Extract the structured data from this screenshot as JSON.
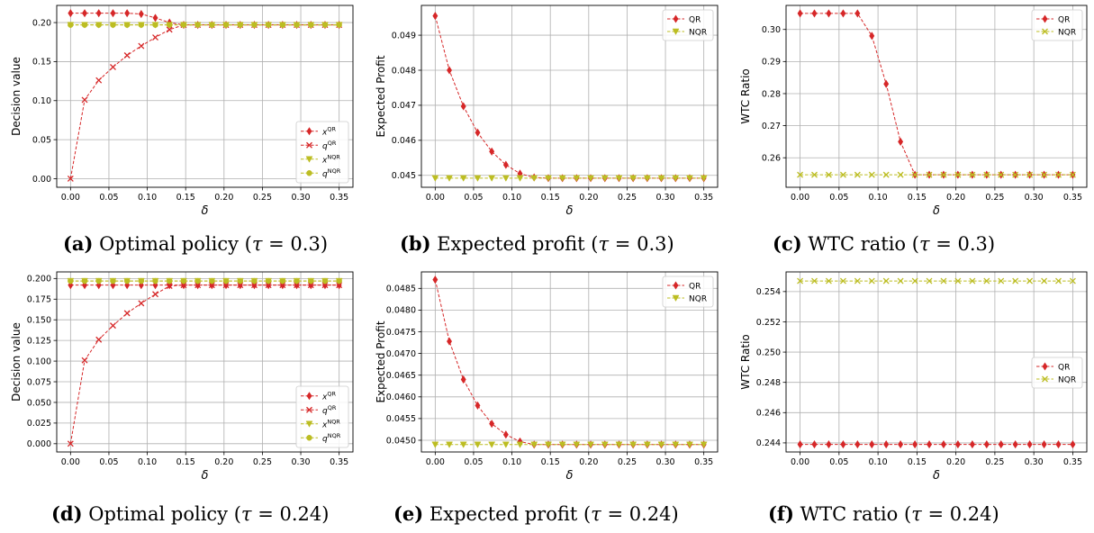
{
  "chart_data": [
    {
      "id": "a",
      "type": "line",
      "caption": {
        "label": "(a)",
        "text": "Optimal policy",
        "tau_value": "0.3"
      },
      "xlabel": "δ",
      "ylabel": "Decision value",
      "xlim": [
        -0.018,
        0.368
      ],
      "ylim": [
        -0.011,
        0.222
      ],
      "xticks": [
        "0.00",
        "0.05",
        "0.10",
        "0.15",
        "0.20",
        "0.25",
        "0.30",
        "0.35"
      ],
      "xtick_values": [
        0,
        0.05,
        0.1,
        0.15,
        0.2,
        0.25,
        0.3,
        0.35
      ],
      "yticks": [
        "0.00",
        "0.05",
        "0.10",
        "0.15",
        "0.20"
      ],
      "ytick_values": [
        0,
        0.05,
        0.1,
        0.15,
        0.2
      ],
      "grid": true,
      "legend_position": "lower-right",
      "x": [
        0,
        0.0184,
        0.0368,
        0.0553,
        0.0737,
        0.0921,
        0.1105,
        0.1289,
        0.1474,
        0.1658,
        0.1842,
        0.2026,
        0.2211,
        0.2395,
        0.2579,
        0.2763,
        0.2947,
        0.3132,
        0.3316,
        0.35
      ],
      "series": [
        {
          "name": "x",
          "sup": "QR",
          "color": "#d62728",
          "marker": "diamond",
          "values": [
            0.212,
            0.212,
            0.212,
            0.212,
            0.212,
            0.211,
            0.206,
            0.2,
            0.197,
            0.197,
            0.197,
            0.197,
            0.197,
            0.197,
            0.197,
            0.197,
            0.197,
            0.197,
            0.197,
            0.197
          ]
        },
        {
          "name": "q",
          "sup": "QR",
          "color": "#d62728",
          "marker": "x",
          "values": [
            0.0,
            0.101,
            0.126,
            0.143,
            0.158,
            0.17,
            0.181,
            0.191,
            0.197,
            0.197,
            0.197,
            0.197,
            0.197,
            0.197,
            0.197,
            0.197,
            0.197,
            0.197,
            0.197,
            0.197
          ]
        },
        {
          "name": "x",
          "sup": "NQR",
          "color": "#bcbd22",
          "marker": "triangle",
          "values": [
            0.197,
            0.197,
            0.197,
            0.197,
            0.197,
            0.197,
            0.197,
            0.197,
            0.197,
            0.197,
            0.197,
            0.197,
            0.197,
            0.197,
            0.197,
            0.197,
            0.197,
            0.197,
            0.197,
            0.197
          ]
        },
        {
          "name": "q",
          "sup": "NQR",
          "color": "#bcbd22",
          "marker": "circle",
          "values": [
            0.197,
            0.197,
            0.197,
            0.197,
            0.197,
            0.197,
            0.197,
            0.197,
            0.197,
            0.197,
            0.197,
            0.197,
            0.197,
            0.197,
            0.197,
            0.197,
            0.197,
            0.197,
            0.197,
            0.197
          ]
        }
      ]
    },
    {
      "id": "b",
      "type": "line",
      "caption": {
        "label": "(b)",
        "text": "Expected profit",
        "tau_value": "0.3"
      },
      "xlabel": "δ",
      "ylabel": "Expected Profit",
      "xlim": [
        -0.018,
        0.368
      ],
      "ylim": [
        0.04466,
        0.04985
      ],
      "xticks": [
        "0.00",
        "0.05",
        "0.10",
        "0.15",
        "0.20",
        "0.25",
        "0.30",
        "0.35"
      ],
      "xtick_values": [
        0,
        0.05,
        0.1,
        0.15,
        0.2,
        0.25,
        0.3,
        0.35
      ],
      "yticks": [
        "0.045",
        "0.046",
        "0.047",
        "0.048",
        "0.049"
      ],
      "ytick_values": [
        0.045,
        0.046,
        0.047,
        0.048,
        0.049
      ],
      "grid": true,
      "legend_position": "upper-right",
      "x": [
        0,
        0.0184,
        0.0368,
        0.0553,
        0.0737,
        0.0921,
        0.1105,
        0.1289,
        0.1474,
        0.1658,
        0.1842,
        0.2026,
        0.2211,
        0.2395,
        0.2579,
        0.2763,
        0.2947,
        0.3132,
        0.3316,
        0.35
      ],
      "series": [
        {
          "name": "QR",
          "sup": "",
          "color": "#d62728",
          "marker": "diamond",
          "values": [
            0.04955,
            0.048,
            0.04697,
            0.04622,
            0.04568,
            0.0453,
            0.04505,
            0.04494,
            0.04492,
            0.04492,
            0.04492,
            0.04492,
            0.04492,
            0.04492,
            0.04492,
            0.04492,
            0.04492,
            0.04492,
            0.04492,
            0.04492
          ]
        },
        {
          "name": "NQR",
          "sup": "",
          "color": "#bcbd22",
          "marker": "triangle",
          "values": [
            0.04492,
            0.04492,
            0.04492,
            0.04492,
            0.04492,
            0.04492,
            0.04492,
            0.04492,
            0.04492,
            0.04492,
            0.04492,
            0.04492,
            0.04492,
            0.04492,
            0.04492,
            0.04492,
            0.04492,
            0.04492,
            0.04492,
            0.04492
          ]
        }
      ]
    },
    {
      "id": "c",
      "type": "line",
      "caption": {
        "label": "(c)",
        "text": "WTC ratio",
        "tau_value": "0.3"
      },
      "xlabel": "δ",
      "ylabel": "WTC Ratio",
      "xlim": [
        -0.018,
        0.368
      ],
      "ylim": [
        0.2508,
        0.3075
      ],
      "xticks": [
        "0.00",
        "0.05",
        "0.10",
        "0.15",
        "0.20",
        "0.25",
        "0.30",
        "0.35"
      ],
      "xtick_values": [
        0,
        0.05,
        0.1,
        0.15,
        0.2,
        0.25,
        0.3,
        0.35
      ],
      "yticks": [
        "0.26",
        "0.27",
        "0.28",
        "0.29",
        "0.30"
      ],
      "ytick_values": [
        0.26,
        0.27,
        0.28,
        0.29,
        0.3
      ],
      "grid": true,
      "legend_position": "upper-right",
      "x": [
        0,
        0.0184,
        0.0368,
        0.0553,
        0.0737,
        0.0921,
        0.1105,
        0.1289,
        0.1474,
        0.1658,
        0.1842,
        0.2026,
        0.2211,
        0.2395,
        0.2579,
        0.2763,
        0.2947,
        0.3132,
        0.3316,
        0.35
      ],
      "series": [
        {
          "name": "QR",
          "sup": "",
          "color": "#d62728",
          "marker": "diamond",
          "values": [
            0.305,
            0.305,
            0.305,
            0.305,
            0.305,
            0.298,
            0.283,
            0.265,
            0.2547,
            0.2547,
            0.2547,
            0.2547,
            0.2547,
            0.2547,
            0.2547,
            0.2547,
            0.2547,
            0.2547,
            0.2547,
            0.2547
          ]
        },
        {
          "name": "NQR",
          "sup": "",
          "color": "#bcbd22",
          "marker": "x",
          "values": [
            0.2547,
            0.2547,
            0.2547,
            0.2547,
            0.2547,
            0.2547,
            0.2547,
            0.2547,
            0.2547,
            0.2547,
            0.2547,
            0.2547,
            0.2547,
            0.2547,
            0.2547,
            0.2547,
            0.2547,
            0.2547,
            0.2547,
            0.2547
          ]
        }
      ]
    },
    {
      "id": "d",
      "type": "line",
      "caption": {
        "label": "(d)",
        "text": "Optimal policy",
        "tau_value": "0.24"
      },
      "xlabel": "δ",
      "ylabel": "Decision value",
      "xlim": [
        -0.018,
        0.368
      ],
      "ylim": [
        -0.01,
        0.208
      ],
      "xticks": [
        "0.00",
        "0.05",
        "0.10",
        "0.15",
        "0.20",
        "0.25",
        "0.30",
        "0.35"
      ],
      "xtick_values": [
        0,
        0.05,
        0.1,
        0.15,
        0.2,
        0.25,
        0.3,
        0.35
      ],
      "yticks": [
        "0.000",
        "0.025",
        "0.050",
        "0.075",
        "0.100",
        "0.125",
        "0.150",
        "0.175",
        "0.200"
      ],
      "ytick_values": [
        0,
        0.025,
        0.05,
        0.075,
        0.1,
        0.125,
        0.15,
        0.175,
        0.2
      ],
      "grid": true,
      "legend_position": "lower-right",
      "x": [
        0,
        0.0184,
        0.0368,
        0.0553,
        0.0737,
        0.0921,
        0.1105,
        0.1289,
        0.1474,
        0.1658,
        0.1842,
        0.2026,
        0.2211,
        0.2395,
        0.2579,
        0.2763,
        0.2947,
        0.3132,
        0.3316,
        0.35
      ],
      "series": [
        {
          "name": "x",
          "sup": "QR",
          "color": "#d62728",
          "marker": "diamond",
          "values": [
            0.192,
            0.192,
            0.192,
            0.192,
            0.192,
            0.192,
            0.192,
            0.192,
            0.192,
            0.192,
            0.192,
            0.192,
            0.192,
            0.192,
            0.192,
            0.192,
            0.192,
            0.192,
            0.192,
            0.192
          ]
        },
        {
          "name": "q",
          "sup": "QR",
          "color": "#d62728",
          "marker": "x",
          "values": [
            0.0,
            0.101,
            0.126,
            0.143,
            0.158,
            0.17,
            0.181,
            0.191,
            0.192,
            0.192,
            0.192,
            0.192,
            0.192,
            0.192,
            0.192,
            0.192,
            0.192,
            0.192,
            0.192,
            0.192
          ]
        },
        {
          "name": "x",
          "sup": "NQR",
          "color": "#bcbd22",
          "marker": "triangle",
          "values": [
            0.197,
            0.197,
            0.197,
            0.197,
            0.197,
            0.197,
            0.197,
            0.197,
            0.197,
            0.197,
            0.197,
            0.197,
            0.197,
            0.197,
            0.197,
            0.197,
            0.197,
            0.197,
            0.197,
            0.197
          ]
        },
        {
          "name": "q",
          "sup": "NQR",
          "color": "#bcbd22",
          "marker": "circle",
          "values": [
            0.197,
            0.197,
            0.197,
            0.197,
            0.197,
            0.197,
            0.197,
            0.197,
            0.197,
            0.197,
            0.197,
            0.197,
            0.197,
            0.197,
            0.197,
            0.197,
            0.197,
            0.197,
            0.197,
            0.197
          ]
        }
      ]
    },
    {
      "id": "e",
      "type": "line",
      "caption": {
        "label": "(e)",
        "text": "Expected profit",
        "tau_value": "0.24"
      },
      "xlabel": "δ",
      "ylabel": "Expected Profit",
      "xlim": [
        -0.018,
        0.368
      ],
      "ylim": [
        0.04473,
        0.04888
      ],
      "xticks": [
        "0.00",
        "0.05",
        "0.10",
        "0.15",
        "0.20",
        "0.25",
        "0.30",
        "0.35"
      ],
      "xtick_values": [
        0,
        0.05,
        0.1,
        0.15,
        0.2,
        0.25,
        0.3,
        0.35
      ],
      "yticks": [
        "0.0450",
        "0.0455",
        "0.0460",
        "0.0465",
        "0.0470",
        "0.0475",
        "0.0480",
        "0.0485"
      ],
      "ytick_values": [
        0.045,
        0.0455,
        0.046,
        0.0465,
        0.047,
        0.0475,
        0.048,
        0.0485
      ],
      "grid": true,
      "legend_position": "upper-right",
      "x": [
        0,
        0.0184,
        0.0368,
        0.0553,
        0.0737,
        0.0921,
        0.1105,
        0.1289,
        0.1474,
        0.1658,
        0.1842,
        0.2026,
        0.2211,
        0.2395,
        0.2579,
        0.2763,
        0.2947,
        0.3132,
        0.3316,
        0.35
      ],
      "series": [
        {
          "name": "QR",
          "sup": "",
          "color": "#d62728",
          "marker": "diamond",
          "values": [
            0.0487,
            0.04728,
            0.0464,
            0.0458,
            0.04538,
            0.04513,
            0.04497,
            0.0449,
            0.0449,
            0.0449,
            0.0449,
            0.0449,
            0.0449,
            0.0449,
            0.0449,
            0.0449,
            0.0449,
            0.0449,
            0.0449,
            0.0449
          ]
        },
        {
          "name": "NQR",
          "sup": "",
          "color": "#bcbd22",
          "marker": "triangle",
          "values": [
            0.0449,
            0.0449,
            0.0449,
            0.0449,
            0.0449,
            0.0449,
            0.0449,
            0.0449,
            0.0449,
            0.0449,
            0.0449,
            0.0449,
            0.0449,
            0.0449,
            0.0449,
            0.0449,
            0.0449,
            0.0449,
            0.0449,
            0.0449
          ]
        }
      ]
    },
    {
      "id": "f",
      "type": "line",
      "caption": {
        "label": "(f)",
        "text": "WTC ratio",
        "tau_value": "0.24"
      },
      "xlabel": "δ",
      "ylabel": "WTC Ratio",
      "xlim": [
        -0.018,
        0.368
      ],
      "ylim": [
        0.2434,
        0.2553
      ],
      "xticks": [
        "0.00",
        "0.05",
        "0.10",
        "0.15",
        "0.20",
        "0.25",
        "0.30",
        "0.35"
      ],
      "xtick_values": [
        0,
        0.05,
        0.1,
        0.15,
        0.2,
        0.25,
        0.3,
        0.35
      ],
      "yticks": [
        "0.244",
        "0.246",
        "0.248",
        "0.250",
        "0.252",
        "0.254"
      ],
      "ytick_values": [
        0.244,
        0.246,
        0.248,
        0.25,
        0.252,
        0.254
      ],
      "grid": true,
      "legend_position": "center-right",
      "x": [
        0,
        0.0184,
        0.0368,
        0.0553,
        0.0737,
        0.0921,
        0.1105,
        0.1289,
        0.1474,
        0.1658,
        0.1842,
        0.2026,
        0.2211,
        0.2395,
        0.2579,
        0.2763,
        0.2947,
        0.3132,
        0.3316,
        0.35
      ],
      "series": [
        {
          "name": "QR",
          "sup": "",
          "color": "#d62728",
          "marker": "diamond",
          "values": [
            0.2439,
            0.2439,
            0.2439,
            0.2439,
            0.2439,
            0.2439,
            0.2439,
            0.2439,
            0.2439,
            0.2439,
            0.2439,
            0.2439,
            0.2439,
            0.2439,
            0.2439,
            0.2439,
            0.2439,
            0.2439,
            0.2439,
            0.2439
          ]
        },
        {
          "name": "NQR",
          "sup": "",
          "color": "#bcbd22",
          "marker": "x",
          "values": [
            0.2547,
            0.2547,
            0.2547,
            0.2547,
            0.2547,
            0.2547,
            0.2547,
            0.2547,
            0.2547,
            0.2547,
            0.2547,
            0.2547,
            0.2547,
            0.2547,
            0.2547,
            0.2547,
            0.2547,
            0.2547,
            0.2547,
            0.2547
          ]
        }
      ]
    }
  ]
}
